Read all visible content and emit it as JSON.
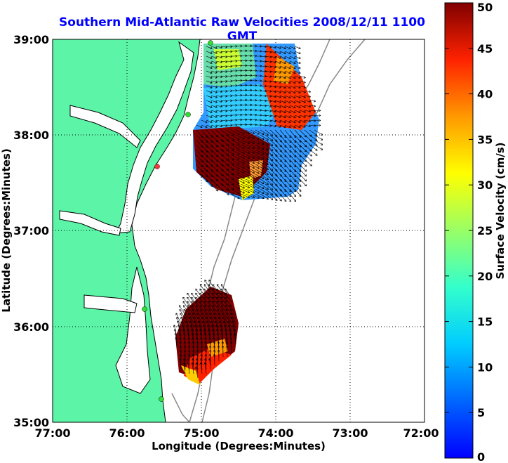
{
  "title": "Southern Mid-Atlantic Raw Velocities 2008/12/11 1100 GMT",
  "map": {
    "xlabel": "Longitude (Degrees:Minutes)",
    "ylabel": "Latitude (Degrees:Minutes)",
    "xticks": [
      "77:00",
      "76:00",
      "75:00",
      "74:00",
      "73:00",
      "72:00"
    ],
    "yticks": [
      "39:00",
      "38:00",
      "37:00",
      "36:00",
      "35:00"
    ],
    "lon_range": [
      -77,
      -72
    ],
    "lat_range": [
      35,
      39
    ],
    "grid": "dotted",
    "colors": {
      "land": "#5cf5a8",
      "water": "#ffffff",
      "coast": "#000000",
      "bathymetry": "#888888",
      "stations": "#33dd33",
      "station_inactive": "#ff3333"
    }
  },
  "colorbar": {
    "label": "Surface Velocity (cm/s)",
    "ticks": [
      "50",
      "45",
      "40",
      "35",
      "30",
      "25",
      "20",
      "15",
      "10",
      "5",
      "0"
    ],
    "min": 0,
    "max": 50,
    "colormap": "jet"
  }
}
